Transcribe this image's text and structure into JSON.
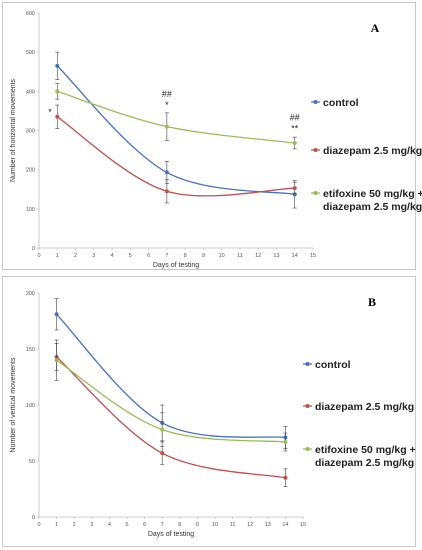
{
  "colors": {
    "control": "#4472C4",
    "diazepam": "#C0504D",
    "etifoxine": "#9BBB59",
    "axis": "#BFBFBF",
    "errorbar": "#404040"
  },
  "chart_data": [
    {
      "type": "line",
      "panel_label": "A",
      "ylabel": "Number of horizontal movements",
      "xlabel": "Days of testing",
      "xlim": [
        0,
        15
      ],
      "ylim": [
        0,
        600
      ],
      "x_ticks": [
        "0",
        "1",
        "2",
        "3",
        "4",
        "5",
        "6",
        "7",
        "8",
        "9",
        "10",
        "11",
        "12",
        "13",
        "14",
        "15"
      ],
      "y_ticks": [
        "0",
        "100",
        "200",
        "300",
        "400",
        "500",
        "600"
      ],
      "legend_position": "right",
      "x": [
        1,
        7,
        14
      ],
      "series": [
        {
          "name": "control",
          "color_key": "control",
          "values": [
            465,
            193,
            137
          ],
          "errors": [
            35,
            28,
            35
          ]
        },
        {
          "name": "diazepam 2.5 mg/kg",
          "color_key": "diazepam",
          "values": [
            335,
            145,
            153
          ],
          "errors": [
            30,
            30,
            15
          ]
        },
        {
          "name": "etifoxine 50 mg/kg + diazepam 2.5 mg/kg",
          "legend_lines": [
            "etifoxine 50 mg/kg +",
            "diazepam 2.5 mg/kg"
          ],
          "color_key": "etifoxine",
          "values": [
            400,
            310,
            268
          ],
          "errors": [
            20,
            35,
            15
          ]
        }
      ],
      "annotations": [
        {
          "text": "*",
          "x": 0.6,
          "y": 340
        },
        {
          "text": "##",
          "x": 7,
          "y": 385
        },
        {
          "text": "*",
          "x": 7,
          "y": 358
        },
        {
          "text": "##",
          "x": 14,
          "y": 325
        },
        {
          "text": "**",
          "x": 14,
          "y": 298
        }
      ]
    },
    {
      "type": "line",
      "panel_label": "B",
      "ylabel": "Number of vertical movements",
      "xlabel": "Days of testing",
      "xlim": [
        0,
        15
      ],
      "ylim": [
        0,
        200
      ],
      "x_ticks": [
        "0",
        "1",
        "2",
        "3",
        "4",
        "5",
        "6",
        "7",
        "8",
        "9",
        "10",
        "11",
        "12",
        "13",
        "14",
        "15"
      ],
      "y_ticks": [
        "0",
        "50",
        "100",
        "150",
        "200"
      ],
      "legend_position": "right",
      "x": [
        1,
        7,
        14
      ],
      "series": [
        {
          "name": "control",
          "color_key": "control",
          "values": [
            181,
            84,
            71
          ],
          "errors": [
            14,
            16,
            10
          ]
        },
        {
          "name": "diazepam 2.5 mg/kg",
          "color_key": "diazepam",
          "values": [
            143,
            57,
            35
          ],
          "errors": [
            12,
            10,
            8
          ]
        },
        {
          "name": "etifoxine 50 mg/kg + diazepam 2.5 mg/kg",
          "legend_lines": [
            "etifoxine 50 mg/kg +",
            "diazepam 2.5 mg/kg"
          ],
          "color_key": "etifoxine",
          "values": [
            140,
            78,
            67
          ],
          "errors": [
            18,
            15,
            8
          ]
        }
      ],
      "annotations": []
    }
  ]
}
